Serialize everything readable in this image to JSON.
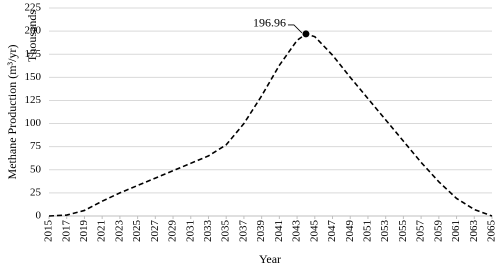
{
  "chart_data": {
    "type": "line",
    "y_label": "Methane Production (m³/yr)",
    "y_unit_label": "Thousands",
    "x_label": "Year",
    "x": [
      2015,
      2017,
      2019,
      2021,
      2023,
      2025,
      2027,
      2029,
      2031,
      2033,
      2035,
      2037,
      2039,
      2041,
      2043,
      2044,
      2045,
      2047,
      2049,
      2051,
      2053,
      2055,
      2057,
      2059,
      2061,
      2063,
      2065
    ],
    "series": [
      {
        "color": "#000000",
        "dashed": true,
        "values": [
          0,
          1,
          6,
          16,
          25,
          33,
          41,
          49,
          57,
          65,
          77,
          100,
          130,
          163,
          190,
          196.96,
          194,
          174,
          150,
          127,
          104,
          81,
          58,
          37,
          19,
          7,
          0
        ]
      }
    ],
    "peak_index": 15,
    "xlim": [
      2015,
      2065
    ],
    "xticks": [
      2015,
      2017,
      2019,
      2021,
      2023,
      2025,
      2027,
      2029,
      2031,
      2033,
      2035,
      2037,
      2039,
      2041,
      2043,
      2045,
      2047,
      2049,
      2051,
      2053,
      2055,
      2057,
      2059,
      2061,
      2063,
      2065
    ],
    "ylim": [
      0,
      225
    ],
    "yticks": [
      0,
      25,
      50,
      75,
      100,
      125,
      150,
      175,
      200,
      225
    ],
    "grid": true
  }
}
